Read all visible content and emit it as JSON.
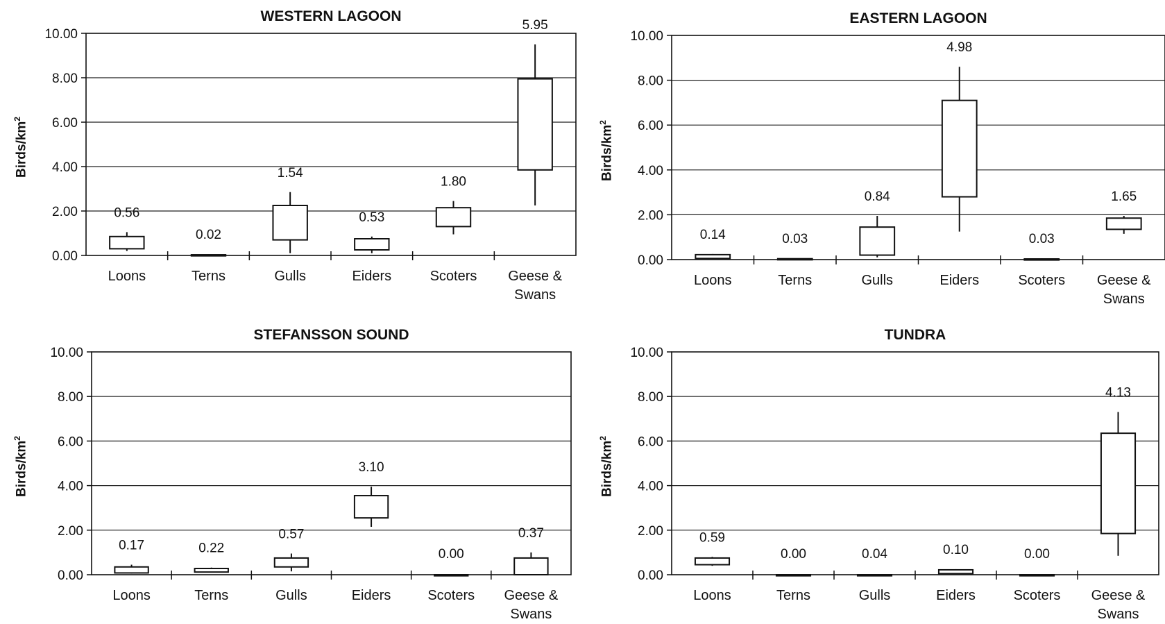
{
  "chart_data": [
    {
      "type": "box",
      "title": "WESTERN LAGOON",
      "ylabel": "Birds/km",
      "ylabel_sup": "2",
      "ylim": [
        0,
        10
      ],
      "yticks": [
        "0.00",
        "2.00",
        "4.00",
        "6.00",
        "8.00",
        "10.00"
      ],
      "grid": true,
      "categories": [
        [
          "Loons"
        ],
        [
          "Terns"
        ],
        [
          "Gulls"
        ],
        [
          "Eiders"
        ],
        [
          "Scoters"
        ],
        [
          "Geese &",
          "Swans"
        ]
      ],
      "means": [
        "0.56",
        "0.02",
        "1.54",
        "0.53",
        "1.80",
        "5.95"
      ],
      "boxes": [
        {
          "low": 0.2,
          "q1": 0.3,
          "q3": 0.85,
          "high": 1.05
        },
        {
          "low": 0.0,
          "q1": 0.0,
          "q3": 0.03,
          "high": 0.05
        },
        {
          "low": 0.1,
          "q1": 0.7,
          "q3": 2.25,
          "high": 2.85
        },
        {
          "low": 0.1,
          "q1": 0.25,
          "q3": 0.75,
          "high": 0.85
        },
        {
          "low": 0.95,
          "q1": 1.3,
          "q3": 2.15,
          "high": 2.45
        },
        {
          "low": 2.25,
          "q1": 3.85,
          "q3": 7.95,
          "high": 9.5
        }
      ]
    },
    {
      "type": "box",
      "title": "EASTERN LAGOON",
      "ylabel": "Birds/km",
      "ylabel_sup": "2",
      "ylim": [
        0,
        10
      ],
      "yticks": [
        "0.00",
        "2.00",
        "4.00",
        "6.00",
        "8.00",
        "10.00"
      ],
      "grid": true,
      "categories": [
        [
          "Loons"
        ],
        [
          "Terns"
        ],
        [
          "Gulls"
        ],
        [
          "Eiders"
        ],
        [
          "Scoters"
        ],
        [
          "Geese &",
          "Swans"
        ]
      ],
      "means": [
        "0.14",
        "0.03",
        "0.84",
        "4.98",
        "0.03",
        "1.65"
      ],
      "boxes": [
        {
          "low": 0.05,
          "q1": 0.05,
          "q3": 0.22,
          "high": 0.25
        },
        {
          "low": 0.0,
          "q1": 0.0,
          "q3": 0.04,
          "high": 0.05
        },
        {
          "low": 0.1,
          "q1": 0.2,
          "q3": 1.45,
          "high": 1.95
        },
        {
          "low": 1.25,
          "q1": 2.8,
          "q3": 7.1,
          "high": 8.6
        },
        {
          "low": 0.0,
          "q1": 0.0,
          "q3": 0.03,
          "high": 0.05
        },
        {
          "low": 1.15,
          "q1": 1.35,
          "q3": 1.85,
          "high": 1.95
        }
      ]
    },
    {
      "type": "box",
      "title": "STEFANSSON SOUND",
      "ylabel": "Birds/km",
      "ylabel_sup": "2",
      "ylim": [
        0,
        10
      ],
      "yticks": [
        "0.00",
        "2.00",
        "4.00",
        "6.00",
        "8.00",
        "10.00"
      ],
      "grid": true,
      "categories": [
        [
          "Loons"
        ],
        [
          "Terns"
        ],
        [
          "Gulls"
        ],
        [
          "Eiders"
        ],
        [
          "Scoters"
        ],
        [
          "Geese &",
          "Swans"
        ]
      ],
      "means": [
        "0.17",
        "0.22",
        "0.57",
        "3.10",
        "0.00",
        "0.37"
      ],
      "boxes": [
        {
          "low": 0.05,
          "q1": 0.08,
          "q3": 0.35,
          "high": 0.45
        },
        {
          "low": 0.1,
          "q1": 0.12,
          "q3": 0.28,
          "high": 0.32
        },
        {
          "low": 0.15,
          "q1": 0.35,
          "q3": 0.75,
          "high": 0.95
        },
        {
          "low": 2.15,
          "q1": 2.55,
          "q3": 3.55,
          "high": 3.95
        },
        {
          "low": 0.0,
          "q1": 0.0,
          "q3": 0.0,
          "high": 0.0
        },
        {
          "low": 0.0,
          "q1": 0.0,
          "q3": 0.75,
          "high": 1.0
        }
      ]
    },
    {
      "type": "box",
      "title": "TUNDRA",
      "ylabel": "Birds/km",
      "ylabel_sup": "2",
      "ylim": [
        0,
        10
      ],
      "yticks": [
        "0.00",
        "2.00",
        "4.00",
        "6.00",
        "8.00",
        "10.00"
      ],
      "grid": true,
      "categories": [
        [
          "Loons"
        ],
        [
          "Terns"
        ],
        [
          "Gulls"
        ],
        [
          "Eiders"
        ],
        [
          "Scoters"
        ],
        [
          "Geese &",
          "Swans"
        ]
      ],
      "means": [
        "0.59",
        "0.00",
        "0.04",
        "0.10",
        "0.00",
        "4.13"
      ],
      "boxes": [
        {
          "low": 0.4,
          "q1": 0.45,
          "q3": 0.75,
          "high": 0.8
        },
        {
          "low": 0.0,
          "q1": 0.0,
          "q3": 0.0,
          "high": 0.0
        },
        {
          "low": 0.0,
          "q1": 0.0,
          "q3": 0.0,
          "high": 0.0
        },
        {
          "low": 0.05,
          "q1": 0.05,
          "q3": 0.22,
          "high": 0.25
        },
        {
          "low": 0.0,
          "q1": 0.0,
          "q3": 0.0,
          "high": 0.0
        },
        {
          "low": 0.85,
          "q1": 1.85,
          "q3": 6.35,
          "high": 7.3
        }
      ]
    }
  ]
}
